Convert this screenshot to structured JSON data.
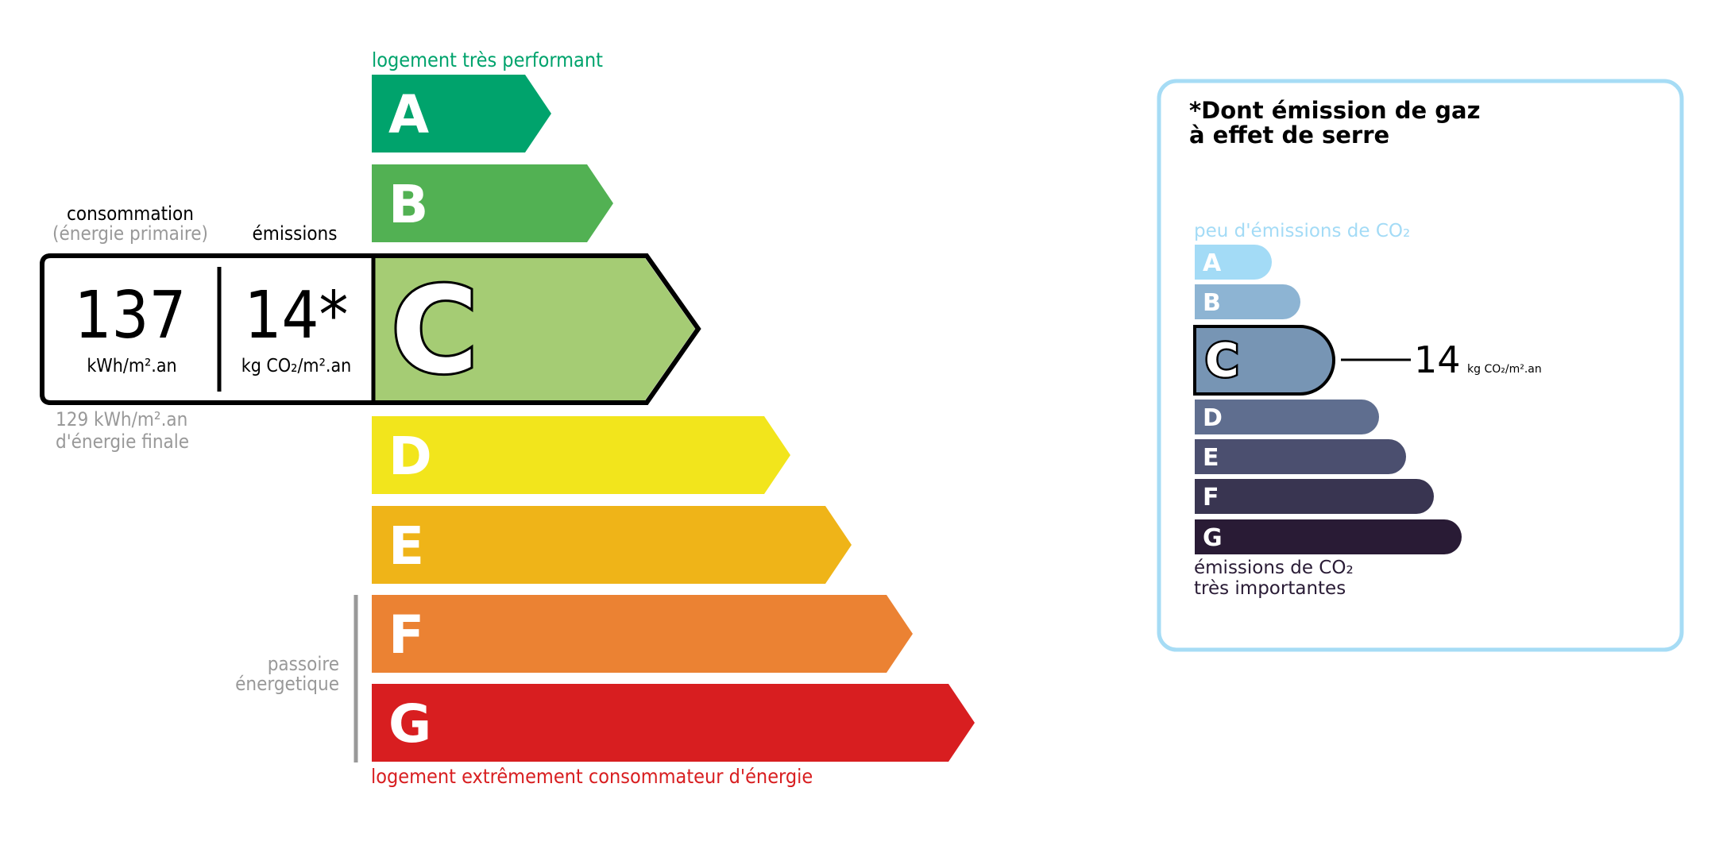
{
  "energy": {
    "top_label": "logement très performant",
    "bottom_label": "logement extrêmement consommateur d'énergie",
    "classes": [
      {
        "letter": "A",
        "color": "#00a36c"
      },
      {
        "letter": "B",
        "color": "#52b153"
      },
      {
        "letter": "C",
        "color": "#a5cc74"
      },
      {
        "letter": "D",
        "color": "#f2e51c"
      },
      {
        "letter": "E",
        "color": "#efb418"
      },
      {
        "letter": "F",
        "color": "#eb8233"
      },
      {
        "letter": "G",
        "color": "#d81e20"
      }
    ],
    "current_class": "C",
    "consumption_label": "consommation",
    "consumption_sublabel": "(énergie primaire)",
    "emissions_label": "émissions",
    "consumption_value": "137",
    "consumption_unit": "kWh/m².an",
    "emissions_value": "14*",
    "emissions_unit": "kg CO₂/m².an",
    "final_energy_line1": "129 kWh/m².an",
    "final_energy_line2": "d'énergie finale",
    "passoire_line1": "passoire",
    "passoire_line2": "énergetique",
    "top_color": "#00a36c",
    "bottom_color": "#d81e20"
  },
  "ges": {
    "title_line1": "*Dont émission de gaz",
    "title_line2": "à effet de serre",
    "top_label": "peu d'émissions de CO₂",
    "bottom_line1": "émissions de CO₂",
    "bottom_line2": "très importantes",
    "classes": [
      {
        "letter": "A",
        "color": "#a3dbf6"
      },
      {
        "letter": "B",
        "color": "#8db4d3"
      },
      {
        "letter": "C",
        "color": "#7795b4"
      },
      {
        "letter": "D",
        "color": "#5f6e8f"
      },
      {
        "letter": "E",
        "color": "#4b4f6f"
      },
      {
        "letter": "F",
        "color": "#393551"
      },
      {
        "letter": "G",
        "color": "#291b35"
      }
    ],
    "current_class": "C",
    "value": "14",
    "unit": "kg CO₂/m².an",
    "border_color": "#a6dcf5"
  }
}
